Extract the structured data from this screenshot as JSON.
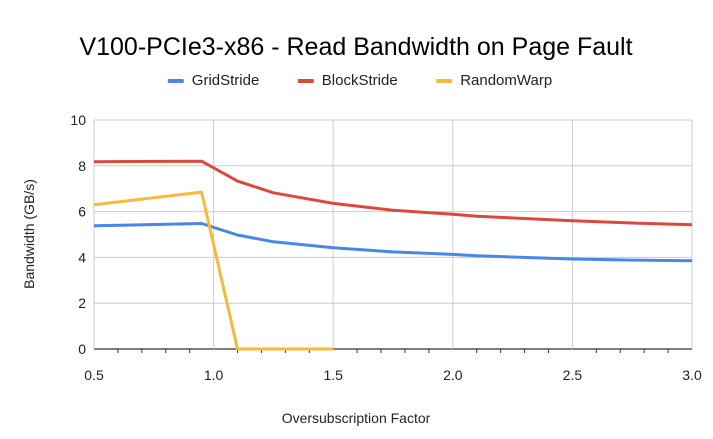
{
  "chart_data": {
    "type": "line",
    "title": "V100-PCIe3-x86 - Read Bandwidth on Page Fault",
    "xlabel": "Oversubscription Factor",
    "ylabel": "Bandwidth (GB/s)",
    "xlim": [
      0.5,
      3.0
    ],
    "ylim": [
      0,
      10
    ],
    "x_ticks": [
      "0.5",
      "1.0",
      "1.5",
      "2.0",
      "2.5",
      "3.0"
    ],
    "y_ticks": [
      "0",
      "2",
      "4",
      "6",
      "8",
      "10"
    ],
    "grid": true,
    "legend_position": "top",
    "series": [
      {
        "name": "GridStride",
        "color": "#4a86e8",
        "points": [
          [
            0.5,
            5.38
          ],
          [
            0.95,
            5.48
          ],
          [
            1.1,
            4.98
          ],
          [
            1.25,
            4.68
          ],
          [
            1.5,
            4.42
          ],
          [
            1.75,
            4.24
          ],
          [
            2.0,
            4.13
          ],
          [
            2.1,
            4.07
          ],
          [
            2.5,
            3.93
          ],
          [
            2.75,
            3.88
          ],
          [
            3.0,
            3.85
          ]
        ]
      },
      {
        "name": "BlockStride",
        "color": "#d94a3d",
        "points": [
          [
            0.5,
            8.18
          ],
          [
            0.95,
            8.2
          ],
          [
            1.1,
            7.33
          ],
          [
            1.25,
            6.82
          ],
          [
            1.5,
            6.36
          ],
          [
            1.75,
            6.06
          ],
          [
            2.0,
            5.88
          ],
          [
            2.1,
            5.8
          ],
          [
            2.5,
            5.6
          ],
          [
            2.75,
            5.5
          ],
          [
            3.0,
            5.43
          ]
        ]
      },
      {
        "name": "RandomWarp",
        "color": "#f6b93b",
        "points": [
          [
            0.5,
            6.3
          ],
          [
            0.95,
            6.85
          ],
          [
            1.1,
            0.0
          ],
          [
            1.25,
            0.0
          ],
          [
            1.5,
            0.0
          ]
        ]
      }
    ]
  }
}
